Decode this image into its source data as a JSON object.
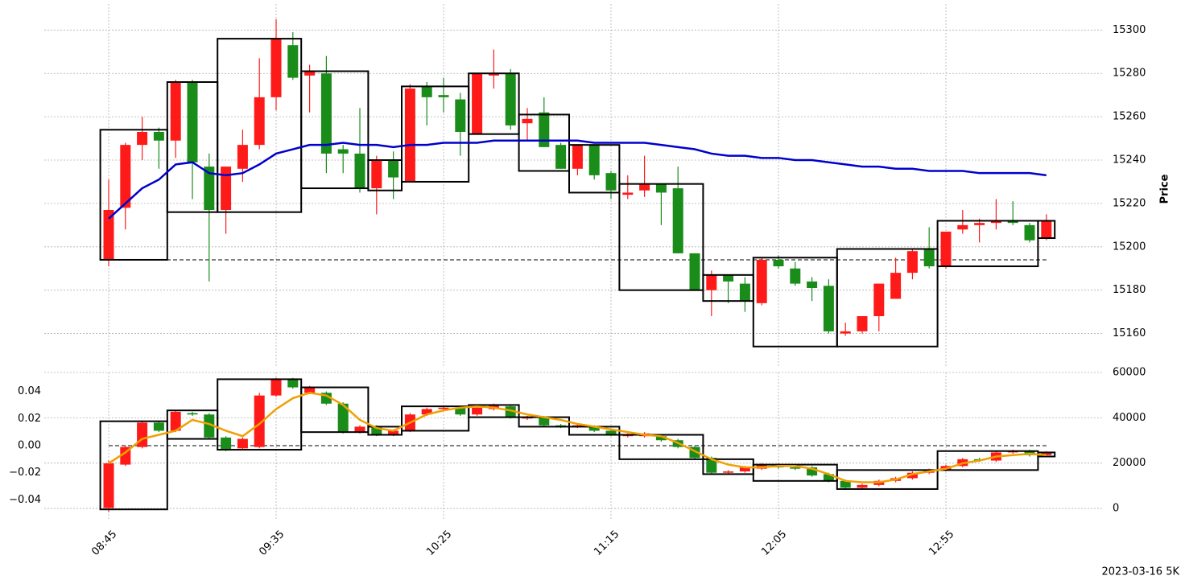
{
  "footer": "2023-03-16 5K",
  "chart_data": [
    {
      "type": "candlestick",
      "y_label": "Price",
      "up_color": "#ff1a1a",
      "down_color": "#1a8c1a",
      "ylim": [
        15145,
        15312
      ],
      "yticks": [
        15160,
        15180,
        15200,
        15220,
        15240,
        15260,
        15280,
        15300
      ],
      "grid": true,
      "hline": 15194,
      "open": [
        15194,
        15218,
        15247,
        15253,
        15249,
        15276,
        15237,
        15217,
        15236,
        15247,
        15269,
        15293,
        15279,
        15280,
        15245,
        15243,
        15227,
        15240,
        15230,
        15274,
        15270,
        15268,
        15252,
        15279,
        15280,
        15257,
        15262,
        15247,
        15236,
        15247,
        15234,
        15224,
        15226,
        15229,
        15227,
        15197,
        15180,
        15187,
        15183,
        15174,
        15194,
        15190,
        15184,
        15182,
        15160,
        15161,
        15168,
        15176,
        15188,
        15199,
        15191,
        15208,
        15210,
        15211,
        15212,
        15210,
        15204
      ],
      "high": [
        15231,
        15248,
        15260,
        15255,
        15277,
        15277,
        15243,
        15237,
        15254,
        15287,
        15305,
        15299,
        15284,
        15288,
        15247,
        15264,
        15242,
        15244,
        15275,
        15276,
        15278,
        15271,
        15280,
        15291,
        15282,
        15264,
        15269,
        15248,
        15247,
        15247,
        15235,
        15233,
        15242,
        15229,
        15237,
        15197,
        15189,
        15187,
        15186,
        15195,
        15196,
        15193,
        15186,
        15185,
        15165,
        15168,
        15183,
        15195,
        15199,
        15209,
        15207,
        15217,
        15213,
        15222,
        15221,
        15211,
        15215
      ],
      "low": [
        15191,
        15208,
        15240,
        15236,
        15241,
        15222,
        15184,
        15206,
        15230,
        15245,
        15263,
        15277,
        15262,
        15234,
        15234,
        15225,
        15215,
        15222,
        15230,
        15256,
        15262,
        15242,
        15252,
        15273,
        15254,
        15249,
        15246,
        15236,
        15233,
        15231,
        15222,
        15222,
        15223,
        15210,
        15197,
        15180,
        15168,
        15174,
        15170,
        15173,
        15190,
        15182,
        15175,
        15160,
        15159,
        15160,
        15161,
        15176,
        15185,
        15190,
        15190,
        15206,
        15202,
        15208,
        15210,
        15202,
        15203
      ],
      "close": [
        15217,
        15247,
        15253,
        15249,
        15276,
        15239,
        15217,
        15237,
        15247,
        15269,
        15296,
        15278,
        15281,
        15243,
        15243,
        15227,
        15240,
        15232,
        15273,
        15269,
        15269,
        15253,
        15280,
        15280,
        15256,
        15259,
        15246,
        15236,
        15247,
        15233,
        15226,
        15225,
        15229,
        15225,
        15197,
        15180,
        15187,
        15184,
        15175,
        15194,
        15191,
        15183,
        15181,
        15161,
        15161,
        15168,
        15183,
        15188,
        15198,
        15191,
        15207,
        15210,
        15211,
        15212,
        15211,
        15203,
        15212
      ],
      "line": {
        "color": "#0000cc",
        "values": [
          15213,
          15220,
          15227,
          15231,
          15238,
          15239,
          15234,
          15233,
          15234,
          15238,
          15243,
          15245,
          15247,
          15247,
          15248,
          15247,
          15247,
          15246,
          15247,
          15247,
          15248,
          15248,
          15248,
          15249,
          15249,
          15249,
          15249,
          15249,
          15249,
          15248,
          15248,
          15248,
          15248,
          15247,
          15246,
          15245,
          15243,
          15242,
          15242,
          15241,
          15241,
          15240,
          15240,
          15239,
          15238,
          15237,
          15237,
          15236,
          15236,
          15235,
          15235,
          15235,
          15234,
          15234,
          15234,
          15234,
          15233
        ]
      },
      "boxes": [
        {
          "start": 0,
          "end": 3,
          "high": 15254,
          "low": 15194
        },
        {
          "start": 4,
          "end": 6,
          "high": 15276,
          "low": 15216
        },
        {
          "start": 7,
          "end": 11,
          "high": 15296,
          "low": 15216
        },
        {
          "start": 12,
          "end": 15,
          "high": 15281,
          "low": 15227
        },
        {
          "start": 16,
          "end": 17,
          "high": 15240,
          "low": 15226
        },
        {
          "start": 18,
          "end": 21,
          "high": 15274,
          "low": 15230
        },
        {
          "start": 22,
          "end": 24,
          "high": 15280,
          "low": 15252
        },
        {
          "start": 25,
          "end": 27,
          "high": 15261,
          "low": 15235
        },
        {
          "start": 28,
          "end": 30,
          "high": 15247,
          "low": 15225
        },
        {
          "start": 31,
          "end": 35,
          "high": 15229,
          "low": 15180
        },
        {
          "start": 36,
          "end": 38,
          "high": 15187,
          "low": 15175
        },
        {
          "start": 39,
          "end": 43,
          "high": 15195,
          "low": 15154
        },
        {
          "start": 44,
          "end": 49,
          "high": 15199,
          "low": 15154
        },
        {
          "start": 50,
          "end": 55,
          "high": 15212,
          "low": 15191
        },
        {
          "start": 56,
          "end": 56,
          "high": 15212,
          "low": 15204
        }
      ]
    },
    {
      "type": "candlestick",
      "up_color": "#ff1a1a",
      "down_color": "#1a8c1a",
      "categories": [
        "08:45",
        null,
        null,
        null,
        null,
        null,
        null,
        null,
        null,
        null,
        "09:35",
        null,
        null,
        null,
        null,
        null,
        null,
        null,
        null,
        null,
        "10:25",
        null,
        null,
        null,
        null,
        null,
        null,
        null,
        null,
        null,
        "11:15",
        null,
        null,
        null,
        null,
        null,
        null,
        null,
        null,
        null,
        "12:05",
        null,
        null,
        null,
        null,
        null,
        null,
        null,
        null,
        null,
        "12:55",
        null,
        null,
        null,
        null,
        null,
        null
      ],
      "ylim": [
        -0.054,
        0.054
      ],
      "yticks": [
        {
          "value": -0.04,
          "label": "−0.04"
        },
        {
          "value": -0.02,
          "label": "−0.02"
        },
        {
          "value": 0,
          "label": "0.00"
        },
        {
          "value": 0.02,
          "label": "0.02"
        },
        {
          "value": 0.04,
          "label": "0.04"
        }
      ],
      "y2lim": [
        -4600,
        60000
      ],
      "y2ticks": [
        0,
        20000,
        40000,
        60000
      ],
      "grid": true,
      "hline": 0,
      "open": [
        -0.046,
        -0.014,
        -0.001,
        0.017,
        0.011,
        0.024,
        0.023,
        0.006,
        -0.002,
        -0.001,
        0.037,
        0.049,
        0.039,
        0.039,
        0.031,
        0.01,
        0.014,
        0.008,
        0.011,
        0.023,
        0.027,
        0.028,
        0.023,
        0.027,
        0.029,
        0.02,
        0.021,
        0.015,
        0.014,
        0.014,
        0.011,
        0.007,
        0.007,
        0.007,
        0.004,
        -0.001,
        -0.009,
        -0.02,
        -0.019,
        -0.017,
        -0.014,
        -0.016,
        -0.016,
        -0.021,
        -0.026,
        -0.031,
        -0.029,
        -0.026,
        -0.024,
        -0.02,
        -0.018,
        -0.015,
        -0.01,
        -0.011,
        -0.005,
        -0.004,
        -0.007
      ],
      "high": [
        -0.011,
        0.0,
        0.018,
        0.018,
        0.026,
        0.025,
        0.024,
        0.007,
        0.006,
        0.039,
        0.05,
        0.05,
        0.044,
        0.04,
        0.032,
        0.015,
        0.015,
        0.012,
        0.024,
        0.028,
        0.029,
        0.029,
        0.029,
        0.031,
        0.03,
        0.022,
        0.022,
        0.016,
        0.016,
        0.015,
        0.012,
        0.009,
        0.01,
        0.008,
        0.005,
        0.0,
        -0.008,
        -0.018,
        -0.015,
        -0.013,
        -0.013,
        -0.015,
        -0.015,
        -0.02,
        -0.025,
        -0.028,
        -0.025,
        -0.023,
        -0.019,
        -0.017,
        -0.014,
        -0.009,
        -0.009,
        -0.004,
        -0.003,
        -0.003,
        -0.004
      ],
      "low": [
        -0.049,
        -0.015,
        -0.002,
        0.01,
        0.01,
        0.022,
        0.005,
        -0.004,
        -0.003,
        -0.002,
        0.036,
        0.042,
        0.038,
        0.03,
        0.009,
        0.009,
        0.007,
        0.007,
        0.01,
        0.022,
        0.026,
        0.022,
        0.022,
        0.026,
        0.02,
        0.019,
        0.014,
        0.013,
        0.013,
        0.01,
        0.007,
        0.006,
        0.006,
        0.003,
        -0.002,
        -0.01,
        -0.021,
        -0.021,
        -0.02,
        -0.018,
        -0.017,
        -0.018,
        -0.023,
        -0.027,
        -0.032,
        -0.032,
        -0.03,
        -0.027,
        -0.025,
        -0.021,
        -0.019,
        -0.016,
        -0.012,
        -0.012,
        -0.006,
        -0.008,
        -0.008
      ],
      "close": [
        -0.013,
        -0.001,
        0.017,
        0.011,
        0.025,
        0.023,
        0.006,
        -0.003,
        0.005,
        0.037,
        0.049,
        0.043,
        0.043,
        0.031,
        0.01,
        0.014,
        0.008,
        0.011,
        0.023,
        0.027,
        0.028,
        0.023,
        0.028,
        0.03,
        0.021,
        0.021,
        0.015,
        0.014,
        0.015,
        0.011,
        0.008,
        0.008,
        0.009,
        0.004,
        -0.001,
        -0.009,
        -0.02,
        -0.019,
        -0.016,
        -0.014,
        -0.016,
        -0.017,
        -0.022,
        -0.026,
        -0.031,
        -0.029,
        -0.026,
        -0.024,
        -0.02,
        -0.018,
        -0.015,
        -0.01,
        -0.011,
        -0.005,
        -0.004,
        -0.007,
        -0.005
      ],
      "line": {
        "color": "#f0a000",
        "values": [
          -0.013,
          -0.005,
          0.005,
          0.008,
          0.011,
          0.019,
          0.016,
          0.011,
          0.007,
          0.016,
          0.027,
          0.035,
          0.039,
          0.037,
          0.03,
          0.019,
          0.013,
          0.011,
          0.017,
          0.023,
          0.026,
          0.028,
          0.029,
          0.028,
          0.026,
          0.023,
          0.021,
          0.019,
          0.016,
          0.014,
          0.012,
          0.01,
          0.008,
          0.007,
          0.002,
          -0.004,
          -0.01,
          -0.014,
          -0.016,
          -0.016,
          -0.015,
          -0.015,
          -0.017,
          -0.021,
          -0.026,
          -0.027,
          -0.027,
          -0.025,
          -0.021,
          -0.019,
          -0.017,
          -0.013,
          -0.011,
          -0.008,
          -0.007,
          -0.006,
          -0.007
        ]
      },
      "boxes": [
        {
          "start": 0,
          "end": 3,
          "high": 0.018,
          "low": -0.047
        },
        {
          "start": 4,
          "end": 6,
          "high": 0.026,
          "low": 0.005
        },
        {
          "start": 7,
          "end": 11,
          "high": 0.049,
          "low": -0.003
        },
        {
          "start": 12,
          "end": 15,
          "high": 0.043,
          "low": 0.01
        },
        {
          "start": 16,
          "end": 17,
          "high": 0.014,
          "low": 0.008
        },
        {
          "start": 18,
          "end": 21,
          "high": 0.029,
          "low": 0.011
        },
        {
          "start": 22,
          "end": 24,
          "high": 0.03,
          "low": 0.021
        },
        {
          "start": 25,
          "end": 27,
          "high": 0.021,
          "low": 0.014
        },
        {
          "start": 28,
          "end": 30,
          "high": 0.014,
          "low": 0.008
        },
        {
          "start": 31,
          "end": 35,
          "high": 0.008,
          "low": -0.01
        },
        {
          "start": 36,
          "end": 38,
          "high": -0.01,
          "low": -0.021
        },
        {
          "start": 39,
          "end": 43,
          "high": -0.014,
          "low": -0.026
        },
        {
          "start": 44,
          "end": 49,
          "high": -0.018,
          "low": -0.032
        },
        {
          "start": 50,
          "end": 55,
          "high": -0.004,
          "low": -0.018
        },
        {
          "start": 56,
          "end": 56,
          "high": -0.005,
          "low": -0.008
        }
      ]
    }
  ]
}
